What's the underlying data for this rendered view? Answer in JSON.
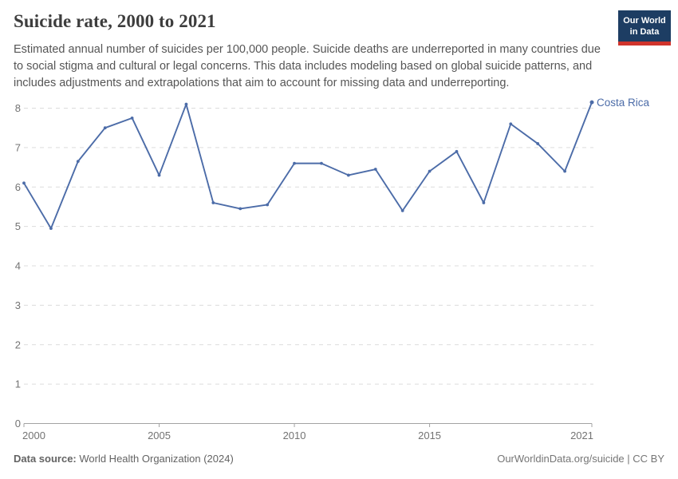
{
  "header": {
    "title": "Suicide rate, 2000 to 2021",
    "subtitle": "Estimated annual number of suicides per 100,000 people. Suicide deaths are underreported in many countries due to social stigma and cultural or legal concerns. This data includes modeling based on global suicide patterns, and includes adjustments and extrapolations that aim to account for missing data and underreporting.",
    "logo": {
      "line1": "Our World",
      "line2": "in Data",
      "bg_color": "#1d3d63",
      "accent_color": "#d0342c"
    }
  },
  "chart_data": {
    "type": "line",
    "title": "Suicide rate, 2000 to 2021",
    "xlabel": "",
    "ylabel": "",
    "xlim": [
      2000,
      2021
    ],
    "ylim": [
      0,
      8
    ],
    "xticks": [
      2000,
      2005,
      2010,
      2015,
      2021
    ],
    "yticks": [
      0,
      1,
      2,
      3,
      4,
      5,
      6,
      7,
      8
    ],
    "grid": "horizontal-dashed",
    "legend_position": "end-of-line-label",
    "series": [
      {
        "name": "Costa Rica",
        "color": "#4c6ca8",
        "x": [
          2000,
          2001,
          2002,
          2003,
          2004,
          2005,
          2006,
          2007,
          2008,
          2009,
          2010,
          2011,
          2012,
          2013,
          2014,
          2015,
          2016,
          2017,
          2018,
          2019,
          2020,
          2021
        ],
        "values": [
          6.1,
          4.95,
          6.65,
          7.5,
          7.75,
          6.3,
          8.1,
          5.6,
          5.45,
          5.55,
          6.6,
          6.6,
          6.3,
          6.45,
          5.4,
          6.4,
          6.9,
          5.6,
          7.6,
          7.1,
          6.4,
          8.15
        ]
      }
    ]
  },
  "footer": {
    "source_label": "Data source:",
    "source_value": " World Health Organization (2024)",
    "rights": "OurWorldinData.org/suicide | CC BY"
  }
}
